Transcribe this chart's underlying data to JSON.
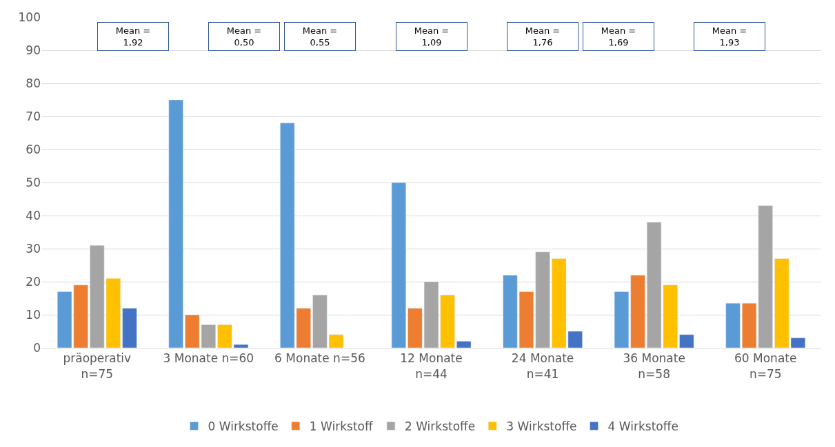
{
  "chart_data": {
    "type": "bar",
    "categories": [
      "präoperativ\nn=75",
      "3 Monate n=60",
      "6 Monate n=56",
      "12 Monate\nn=44",
      "24 Monate\nn=41",
      "36 Monate\nn=58",
      "60 Monate\nn=75"
    ],
    "series": [
      {
        "name": "0 Wirkstoffe",
        "color": "#5b9bd5",
        "values": [
          17,
          75,
          68,
          50,
          22,
          17,
          13.5
        ]
      },
      {
        "name": "1 Wirkstoff",
        "color": "#ed7d31",
        "values": [
          19,
          10,
          12,
          12,
          17,
          22,
          13.5
        ]
      },
      {
        "name": "2 Wirkstoffe",
        "color": "#a5a5a5",
        "values": [
          31,
          7,
          16,
          20,
          29,
          38,
          43
        ]
      },
      {
        "name": "3 Wirkstoffe",
        "color": "#ffc000",
        "values": [
          21,
          7,
          4,
          16,
          27,
          19,
          27
        ]
      },
      {
        "name": "4 Wirkstoffe",
        "color": "#4472c4",
        "values": [
          12,
          1,
          null,
          2,
          5,
          4,
          3
        ]
      }
    ],
    "annotations": [
      "Mean =\n1,92",
      "Mean =\n0,50",
      "Mean =\n0,55",
      "Mean =\n1,09",
      "Mean =\n1,76",
      "Mean =\n1,69",
      "Mean =\n1,93"
    ],
    "ylim": [
      0,
      100
    ],
    "yticks": [
      0,
      10,
      20,
      30,
      40,
      50,
      60,
      70,
      80,
      90,
      100
    ],
    "grid": "y",
    "legend": "bottom"
  }
}
